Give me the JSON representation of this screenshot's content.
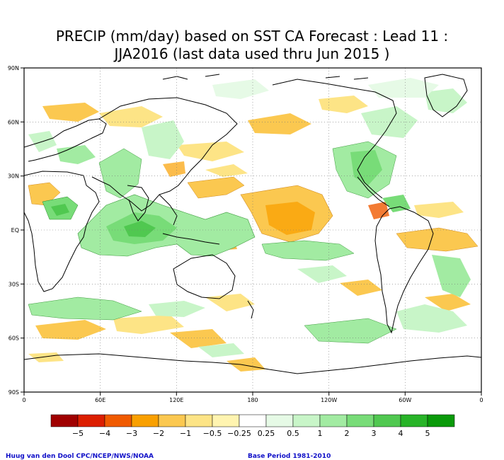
{
  "title_line1": "PRECIP (mm/day) based on SST CA Forecast : Lead 11 :",
  "title_line2": "JJA2016 (last data used thru Jun 2015 )",
  "lat_labels": [
    "90N",
    "60N",
    "30N",
    "EQ",
    "30S",
    "60S",
    "90S"
  ],
  "lon_labels": [
    "0",
    "60E",
    "120E",
    "180",
    "120W",
    "60W",
    "0"
  ],
  "colorbar": {
    "labels": [
      "−5",
      "−4",
      "−3",
      "−2",
      "−1",
      "−0.5",
      "−0.25",
      "0.25",
      "0.5",
      "1",
      "2",
      "3",
      "4",
      "5"
    ],
    "colors": [
      "#a00000",
      "#dc1e00",
      "#f05a00",
      "#f9a000",
      "#fbc850",
      "#fde486",
      "#fff4b0",
      "#ffffff",
      "#e6fae6",
      "#c8f5c8",
      "#a2eba2",
      "#78dc78",
      "#50c850",
      "#28b428",
      "#0a9a0a"
    ]
  },
  "footer_left": "Huug van den Dool CPC/NCEP/NWS/NOAA",
  "footer_right": "Base Period 1981-2010"
}
